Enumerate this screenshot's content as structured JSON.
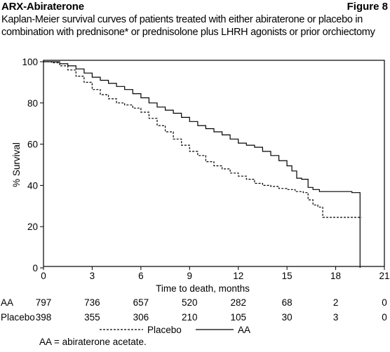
{
  "header": {
    "title": "ARX-Abiraterone",
    "figure": "Figure 8"
  },
  "caption": {
    "line1": "Kaplan-Meier survival curves of patients treated with either abiraterone or placebo in",
    "line2": "combination with prednisone* or prednisolone plus LHRH agonists or prior orchiectomy"
  },
  "footnote": "AA = abiraterone acetate.",
  "chart_data": {
    "type": "line",
    "xlabel": "Time to death, months",
    "ylabel": "% Survival",
    "xlim": [
      0,
      21
    ],
    "ylim": [
      0,
      100
    ],
    "xticks": [
      0,
      3,
      6,
      9,
      12,
      15,
      18,
      21
    ],
    "yticks": [
      0,
      20,
      40,
      60,
      80,
      100
    ],
    "grid": false,
    "legend_position": "bottom",
    "series": [
      {
        "name": "AA",
        "style": "solid",
        "color": "#000000",
        "x": [
          0,
          0.5,
          1,
          1.5,
          2,
          2.5,
          3,
          3.5,
          4,
          4.5,
          5,
          5.5,
          6,
          6.5,
          7,
          7.5,
          8,
          8.5,
          9,
          9.5,
          10,
          10.5,
          11,
          11.5,
          12,
          12.5,
          13,
          13.5,
          14,
          14.5,
          15,
          15.3,
          15.6,
          15.9,
          16.1,
          16.3,
          16.6,
          17,
          18,
          19,
          19.5,
          19.5
        ],
        "y": [
          100,
          100,
          99,
          98,
          96.5,
          94.5,
          92.5,
          91,
          89.5,
          88,
          86.5,
          84.5,
          82.5,
          80,
          78,
          76.5,
          75,
          73,
          71,
          69,
          67.5,
          66,
          64.5,
          62.5,
          60.5,
          59.5,
          58.5,
          56.5,
          54.5,
          52,
          49.5,
          47,
          43.5,
          43,
          43,
          39,
          38,
          37,
          37,
          36.5,
          36.5,
          0
        ]
      },
      {
        "name": "Placebo",
        "style": "dashed",
        "color": "#000000",
        "x": [
          0,
          0.5,
          1,
          1.5,
          2,
          2.5,
          3,
          3.5,
          4,
          4.5,
          5,
          5.5,
          6,
          6.5,
          7,
          7.5,
          8,
          8.5,
          9,
          9.5,
          10,
          10.5,
          11,
          11.5,
          12,
          12.5,
          13,
          13.5,
          14,
          14.5,
          15,
          15.5,
          16,
          16.3,
          16.6,
          16.9,
          17.2,
          18,
          19,
          19.6
        ],
        "y": [
          100,
          99.5,
          98,
          96,
          93,
          90,
          86.5,
          84,
          82,
          80,
          79,
          77.5,
          75.5,
          72.5,
          69,
          66,
          62.5,
          59.5,
          56.5,
          54.5,
          51.5,
          49.5,
          48,
          46,
          44.5,
          43,
          41,
          40,
          39.5,
          38.5,
          38,
          37,
          36.5,
          33,
          30.5,
          29.5,
          24.5,
          24.5,
          24.5,
          24.5
        ]
      }
    ],
    "risk_table": {
      "times": [
        0,
        3,
        6,
        9,
        12,
        15,
        18,
        21
      ],
      "rows": [
        {
          "label": "AA",
          "values": [
            "797",
            "736",
            "657",
            "520",
            "282",
            "68",
            "2",
            "0"
          ]
        },
        {
          "label": "Placebo",
          "values": [
            "398",
            "355",
            "306",
            "210",
            "105",
            "30",
            "3",
            "0"
          ]
        }
      ]
    }
  }
}
